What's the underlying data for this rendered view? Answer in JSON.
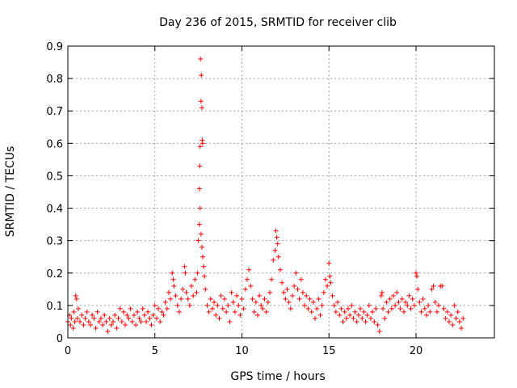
{
  "chart_data": {
    "type": "scatter",
    "title": "Day 236 of 2015, SRMTID for receiver clib",
    "xlabel": "GPS time / hours",
    "ylabel": "SRMTID / TECUs",
    "xlim": [
      0,
      24.5
    ],
    "ylim": [
      0,
      0.9
    ],
    "x_ticks": [
      0,
      5,
      10,
      15,
      20
    ],
    "y_ticks": [
      0,
      0.1,
      0.2,
      0.3,
      0.4,
      0.5,
      0.6,
      0.7,
      0.8,
      0.9
    ],
    "x_tick_labels": [
      "0",
      "5",
      "10",
      "15",
      "20"
    ],
    "y_tick_labels": [
      "0",
      "0.1",
      "0.2",
      "0.3",
      "0.4",
      "0.5",
      "0.6",
      "0.7",
      "0.8",
      "0.9"
    ],
    "grid": true,
    "marker": "plus",
    "series": [
      {
        "name": "SRMTID",
        "color": "#ff0000",
        "points": [
          [
            0.0,
            0.05
          ],
          [
            0.1,
            0.07
          ],
          [
            0.15,
            0.04
          ],
          [
            0.2,
            0.06
          ],
          [
            0.3,
            0.03
          ],
          [
            0.35,
            0.08
          ],
          [
            0.4,
            0.05
          ],
          [
            0.45,
            0.13
          ],
          [
            0.5,
            0.12
          ],
          [
            0.55,
            0.06
          ],
          [
            0.6,
            0.09
          ],
          [
            0.7,
            0.05
          ],
          [
            0.8,
            0.07
          ],
          [
            0.9,
            0.04
          ],
          [
            1.0,
            0.06
          ],
          [
            1.1,
            0.08
          ],
          [
            1.2,
            0.05
          ],
          [
            1.3,
            0.04
          ],
          [
            1.4,
            0.07
          ],
          [
            1.5,
            0.06
          ],
          [
            1.6,
            0.03
          ],
          [
            1.7,
            0.08
          ],
          [
            1.8,
            0.05
          ],
          [
            1.9,
            0.06
          ],
          [
            2.0,
            0.04
          ],
          [
            2.1,
            0.07
          ],
          [
            2.2,
            0.05
          ],
          [
            2.3,
            0.02
          ],
          [
            2.4,
            0.06
          ],
          [
            2.5,
            0.04
          ],
          [
            2.6,
            0.05
          ],
          [
            2.7,
            0.07
          ],
          [
            2.8,
            0.03
          ],
          [
            2.9,
            0.06
          ],
          [
            3.0,
            0.09
          ],
          [
            3.1,
            0.05
          ],
          [
            3.2,
            0.08
          ],
          [
            3.3,
            0.04
          ],
          [
            3.4,
            0.07
          ],
          [
            3.5,
            0.06
          ],
          [
            3.6,
            0.09
          ],
          [
            3.7,
            0.05
          ],
          [
            3.8,
            0.07
          ],
          [
            3.9,
            0.04
          ],
          [
            4.0,
            0.08
          ],
          [
            4.1,
            0.06
          ],
          [
            4.2,
            0.05
          ],
          [
            4.3,
            0.09
          ],
          [
            4.4,
            0.07
          ],
          [
            4.5,
            0.05
          ],
          [
            4.6,
            0.08
          ],
          [
            4.7,
            0.06
          ],
          [
            4.8,
            0.04
          ],
          [
            4.9,
            0.07
          ],
          [
            5.0,
            0.1
          ],
          [
            5.1,
            0.06
          ],
          [
            5.2,
            0.09
          ],
          [
            5.3,
            0.05
          ],
          [
            5.4,
            0.08
          ],
          [
            5.5,
            0.07
          ],
          [
            5.6,
            0.11
          ],
          [
            5.7,
            0.09
          ],
          [
            5.8,
            0.14
          ],
          [
            5.9,
            0.12
          ],
          [
            6.0,
            0.2
          ],
          [
            6.05,
            0.18
          ],
          [
            6.1,
            0.16
          ],
          [
            6.2,
            0.13
          ],
          [
            6.3,
            0.1
          ],
          [
            6.4,
            0.08
          ],
          [
            6.5,
            0.12
          ],
          [
            6.6,
            0.15
          ],
          [
            6.7,
            0.22
          ],
          [
            6.75,
            0.2
          ],
          [
            6.8,
            0.14
          ],
          [
            6.9,
            0.12
          ],
          [
            7.0,
            0.1
          ],
          [
            7.1,
            0.16
          ],
          [
            7.2,
            0.13
          ],
          [
            7.3,
            0.18
          ],
          [
            7.4,
            0.14
          ],
          [
            7.45,
            0.2
          ],
          [
            7.5,
            0.3
          ],
          [
            7.55,
            0.35
          ],
          [
            7.56,
            0.46
          ],
          [
            7.58,
            0.53
          ],
          [
            7.6,
            0.59
          ],
          [
            7.62,
            0.86
          ],
          [
            7.65,
            0.73
          ],
          [
            7.67,
            0.81
          ],
          [
            7.7,
            0.71
          ],
          [
            7.72,
            0.61
          ],
          [
            7.74,
            0.6
          ],
          [
            7.6,
            0.4
          ],
          [
            7.65,
            0.32
          ],
          [
            7.7,
            0.28
          ],
          [
            7.75,
            0.25
          ],
          [
            7.8,
            0.22
          ],
          [
            7.85,
            0.19
          ],
          [
            7.9,
            0.15
          ],
          [
            8.0,
            0.1
          ],
          [
            8.1,
            0.08
          ],
          [
            8.2,
            0.12
          ],
          [
            8.3,
            0.09
          ],
          [
            8.4,
            0.11
          ],
          [
            8.5,
            0.07
          ],
          [
            8.6,
            0.1
          ],
          [
            8.7,
            0.06
          ],
          [
            8.8,
            0.13
          ],
          [
            8.9,
            0.09
          ],
          [
            9.0,
            0.12
          ],
          [
            9.1,
            0.08
          ],
          [
            9.2,
            0.1
          ],
          [
            9.3,
            0.05
          ],
          [
            9.4,
            0.14
          ],
          [
            9.5,
            0.11
          ],
          [
            9.6,
            0.08
          ],
          [
            9.7,
            0.13
          ],
          [
            9.8,
            0.1
          ],
          [
            9.9,
            0.07
          ],
          [
            10.0,
            0.12
          ],
          [
            10.1,
            0.09
          ],
          [
            10.2,
            0.15
          ],
          [
            10.3,
            0.18
          ],
          [
            10.4,
            0.21
          ],
          [
            10.5,
            0.16
          ],
          [
            10.6,
            0.12
          ],
          [
            10.7,
            0.08
          ],
          [
            10.8,
            0.11
          ],
          [
            10.9,
            0.07
          ],
          [
            11.0,
            0.13
          ],
          [
            11.1,
            0.1
          ],
          [
            11.2,
            0.09
          ],
          [
            11.3,
            0.12
          ],
          [
            11.4,
            0.08
          ],
          [
            11.5,
            0.11
          ],
          [
            11.6,
            0.14
          ],
          [
            11.7,
            0.18
          ],
          [
            11.8,
            0.24
          ],
          [
            11.9,
            0.27
          ],
          [
            11.95,
            0.33
          ],
          [
            12.0,
            0.31
          ],
          [
            12.05,
            0.29
          ],
          [
            12.1,
            0.25
          ],
          [
            12.2,
            0.21
          ],
          [
            12.3,
            0.17
          ],
          [
            12.4,
            0.14
          ],
          [
            12.5,
            0.12
          ],
          [
            12.6,
            0.15
          ],
          [
            12.7,
            0.11
          ],
          [
            12.8,
            0.09
          ],
          [
            12.9,
            0.13
          ],
          [
            13.0,
            0.16
          ],
          [
            13.1,
            0.2
          ],
          [
            13.2,
            0.15
          ],
          [
            13.3,
            0.12
          ],
          [
            13.4,
            0.18
          ],
          [
            13.5,
            0.14
          ],
          [
            13.6,
            0.1
          ],
          [
            13.7,
            0.13
          ],
          [
            13.8,
            0.09
          ],
          [
            13.9,
            0.12
          ],
          [
            14.0,
            0.08
          ],
          [
            14.1,
            0.11
          ],
          [
            14.2,
            0.06
          ],
          [
            14.3,
            0.09
          ],
          [
            14.4,
            0.12
          ],
          [
            14.5,
            0.07
          ],
          [
            14.6,
            0.1
          ],
          [
            14.7,
            0.14
          ],
          [
            14.8,
            0.18
          ],
          [
            14.9,
            0.16
          ],
          [
            15.0,
            0.23
          ],
          [
            15.05,
            0.19
          ],
          [
            15.1,
            0.17
          ],
          [
            15.2,
            0.13
          ],
          [
            15.3,
            0.1
          ],
          [
            15.4,
            0.08
          ],
          [
            15.5,
            0.11
          ],
          [
            15.6,
            0.07
          ],
          [
            15.7,
            0.09
          ],
          [
            15.8,
            0.05
          ],
          [
            15.9,
            0.08
          ],
          [
            16.0,
            0.06
          ],
          [
            16.1,
            0.09
          ],
          [
            16.2,
            0.07
          ],
          [
            16.3,
            0.1
          ],
          [
            16.4,
            0.06
          ],
          [
            16.5,
            0.08
          ],
          [
            16.6,
            0.05
          ],
          [
            16.7,
            0.07
          ],
          [
            16.8,
            0.09
          ],
          [
            16.9,
            0.06
          ],
          [
            17.0,
            0.08
          ],
          [
            17.1,
            0.05
          ],
          [
            17.2,
            0.07
          ],
          [
            17.3,
            0.1
          ],
          [
            17.4,
            0.06
          ],
          [
            17.5,
            0.08
          ],
          [
            17.6,
            0.05
          ],
          [
            17.7,
            0.09
          ],
          [
            17.8,
            0.04
          ],
          [
            17.9,
            0.02
          ],
          [
            18.0,
            0.13
          ],
          [
            18.05,
            0.14
          ],
          [
            18.1,
            0.09
          ],
          [
            18.2,
            0.06
          ],
          [
            18.3,
            0.11
          ],
          [
            18.4,
            0.08
          ],
          [
            18.5,
            0.12
          ],
          [
            18.6,
            0.09
          ],
          [
            18.7,
            0.13
          ],
          [
            18.8,
            0.1
          ],
          [
            18.9,
            0.14
          ],
          [
            19.0,
            0.11
          ],
          [
            19.1,
            0.09
          ],
          [
            19.2,
            0.12
          ],
          [
            19.3,
            0.08
          ],
          [
            19.4,
            0.11
          ],
          [
            19.5,
            0.1
          ],
          [
            19.6,
            0.13
          ],
          [
            19.7,
            0.09
          ],
          [
            19.8,
            0.12
          ],
          [
            19.9,
            0.1
          ],
          [
            20.0,
            0.2
          ],
          [
            20.05,
            0.19
          ],
          [
            20.1,
            0.15
          ],
          [
            20.2,
            0.11
          ],
          [
            20.3,
            0.08
          ],
          [
            20.4,
            0.12
          ],
          [
            20.5,
            0.09
          ],
          [
            20.6,
            0.07
          ],
          [
            20.7,
            0.1
          ],
          [
            20.8,
            0.08
          ],
          [
            20.9,
            0.15
          ],
          [
            21.0,
            0.16
          ],
          [
            21.1,
            0.11
          ],
          [
            21.2,
            0.08
          ],
          [
            21.3,
            0.1
          ],
          [
            21.4,
            0.16
          ],
          [
            21.5,
            0.16
          ],
          [
            21.6,
            0.09
          ],
          [
            21.7,
            0.06
          ],
          [
            21.8,
            0.08
          ],
          [
            21.9,
            0.05
          ],
          [
            22.0,
            0.07
          ],
          [
            22.1,
            0.04
          ],
          [
            22.2,
            0.1
          ],
          [
            22.3,
            0.06
          ],
          [
            22.4,
            0.08
          ],
          [
            22.5,
            0.05
          ],
          [
            22.6,
            0.03
          ],
          [
            22.7,
            0.06
          ]
        ]
      }
    ]
  }
}
